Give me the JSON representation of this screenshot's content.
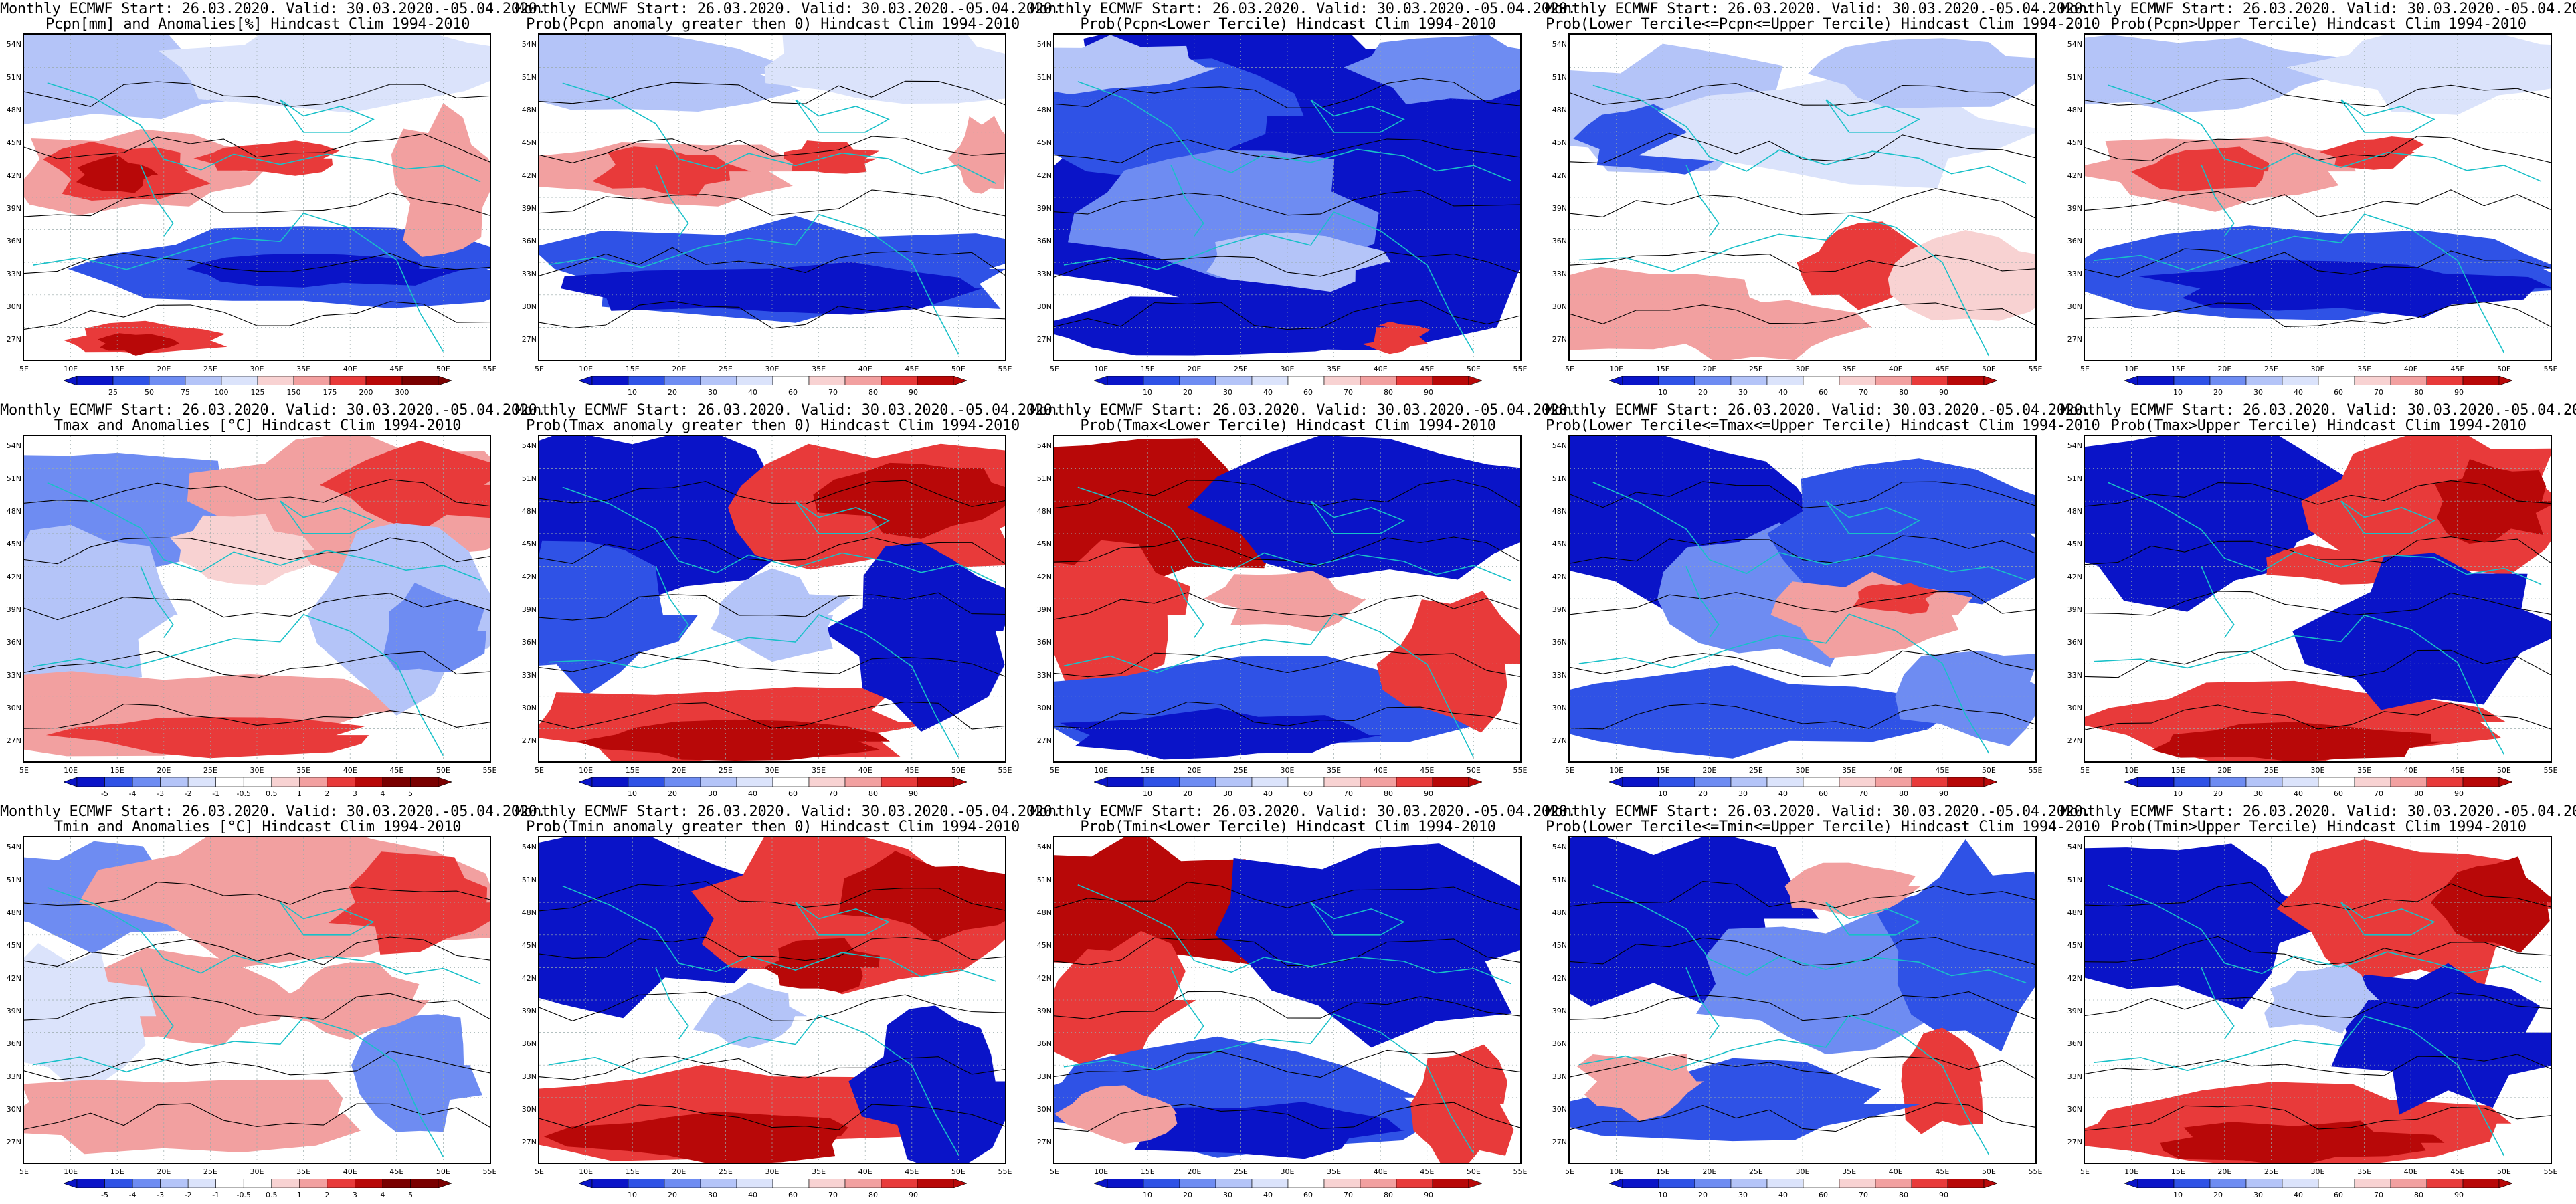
{
  "header_common": "Monthly ECMWF Start: 26.03.2020. Valid: 30.03.2020.-05.04.2020.",
  "lat_labels": [
    "54N",
    "51N",
    "48N",
    "45N",
    "42N",
    "39N",
    "36N",
    "33N",
    "30N",
    "27N"
  ],
  "lon_labels": [
    "5E",
    "10E",
    "15E",
    "20E",
    "25E",
    "30E",
    "35E",
    "40E",
    "45E",
    "50E",
    "55E"
  ],
  "colors": {
    "deep_blue": "#0a14c8",
    "blue": "#2f52e6",
    "mid_blue": "#6e8cf2",
    "light_blue": "#b4c4f8",
    "pale_blue": "#dbe3fb",
    "white": "#ffffff",
    "pale_red": "#f8d2d2",
    "light_red": "#f2a0a0",
    "red": "#e83a3a",
    "deep_red": "#b80808",
    "dark_red": "#7a0000",
    "coast": "#18c0c8",
    "contour": "#000000"
  },
  "panels": [
    {
      "title2": "Pcpn[mm] and Anomalies[%] Hindcast Clim 1994-2010",
      "colorbar": [
        "25",
        "50",
        "75",
        "100",
        "125",
        "150",
        "175",
        "200",
        "300"
      ],
      "pattern": "pcpn_anom"
    },
    {
      "title2": "Prob(Pcpn anomaly greater then 0) Hindcast Clim 1994-2010",
      "colorbar": [
        "10",
        "20",
        "30",
        "40",
        "60",
        "70",
        "80",
        "90"
      ],
      "pattern": "pcpn_pos"
    },
    {
      "title2": "Prob(Pcpn<Lower Tercile) Hindcast Clim 1994-2010",
      "colorbar": [
        "10",
        "20",
        "30",
        "40",
        "60",
        "70",
        "80",
        "90"
      ],
      "pattern": "pcpn_low"
    },
    {
      "title2": "Prob(Lower Tercile<=Pcpn<=Upper Tercile) Hindcast Clim 1994-2010",
      "colorbar": [
        "10",
        "20",
        "30",
        "40",
        "60",
        "70",
        "80",
        "90"
      ],
      "pattern": "pcpn_mid"
    },
    {
      "title2": "Prob(Pcpn>Upper Tercile) Hindcast Clim 1994-2010",
      "colorbar": [
        "10",
        "20",
        "30",
        "40",
        "60",
        "70",
        "80",
        "90"
      ],
      "pattern": "pcpn_up"
    },
    {
      "title2": "Tmax and Anomalies [°C] Hindcast Clim 1994-2010",
      "colorbar": [
        "-5",
        "-4",
        "-3",
        "-2",
        "-1",
        "-0.5",
        "0.5",
        "1",
        "2",
        "3",
        "4",
        "5"
      ],
      "pattern": "tmax_anom"
    },
    {
      "title2": "Prob(Tmax anomaly greater then 0) Hindcast Clim 1994-2010",
      "colorbar": [
        "10",
        "20",
        "30",
        "40",
        "60",
        "70",
        "80",
        "90"
      ],
      "pattern": "tmax_pos"
    },
    {
      "title2": "Prob(Tmax<Lower Tercile) Hindcast Clim 1994-2010",
      "colorbar": [
        "10",
        "20",
        "30",
        "40",
        "60",
        "70",
        "80",
        "90"
      ],
      "pattern": "tmax_low"
    },
    {
      "title2": "Prob(Lower Tercile<=Tmax<=Upper Tercile) Hindcast Clim 1994-2010",
      "colorbar": [
        "10",
        "20",
        "30",
        "40",
        "60",
        "70",
        "80",
        "90"
      ],
      "pattern": "tmax_mid"
    },
    {
      "title2": "Prob(Tmax>Upper Tercile) Hindcast Clim 1994-2010",
      "colorbar": [
        "10",
        "20",
        "30",
        "40",
        "60",
        "70",
        "80",
        "90"
      ],
      "pattern": "tmax_up"
    },
    {
      "title2": "Tmin and Anomalies [°C] Hindcast Clim 1994-2010",
      "colorbar": [
        "-5",
        "-4",
        "-3",
        "-2",
        "-1",
        "-0.5",
        "0.5",
        "1",
        "2",
        "3",
        "4",
        "5"
      ],
      "pattern": "tmin_anom"
    },
    {
      "title2": "Prob(Tmin anomaly greater then 0) Hindcast Clim 1994-2010",
      "colorbar": [
        "10",
        "20",
        "30",
        "40",
        "60",
        "70",
        "80",
        "90"
      ],
      "pattern": "tmin_pos"
    },
    {
      "title2": "Prob(Tmin<Lower Tercile) Hindcast Clim 1994-2010",
      "colorbar": [
        "10",
        "20",
        "30",
        "40",
        "60",
        "70",
        "80",
        "90"
      ],
      "pattern": "tmin_low"
    },
    {
      "title2": "Prob(Lower Tercile<=Tmin<=Upper Tercile) Hindcast Clim 1994-2010",
      "colorbar": [
        "10",
        "20",
        "30",
        "40",
        "60",
        "70",
        "80",
        "90"
      ],
      "pattern": "tmin_mid"
    },
    {
      "title2": "Prob(Tmin>Upper Tercile) Hindcast Clim 1994-2010",
      "colorbar": [
        "10",
        "20",
        "30",
        "40",
        "60",
        "70",
        "80",
        "90"
      ],
      "pattern": "tmin_up"
    }
  ]
}
